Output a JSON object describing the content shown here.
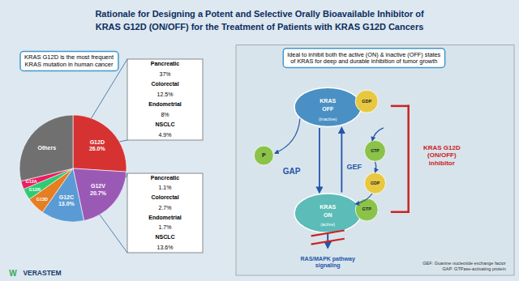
{
  "chart_data": {
    "type": "pie",
    "title": "Rationale for Designing a Potent and Selective Orally Bioavailable Inhibitor of\nKRAS G12D (ON/OFF) for the Treatment of Patients with KRAS G12D Cancers",
    "categories": [
      "G12D",
      "G12V",
      "G12C",
      "G13D",
      "G12R",
      "G12A",
      "Others"
    ],
    "values": [
      26.0,
      20.7,
      13.0,
      5.5,
      3.5,
      2.5,
      28.8
    ],
    "value_labels": [
      "26.0%",
      "20.7%",
      "13.0%",
      null,
      null,
      null,
      null
    ],
    "colors": [
      "#d73232",
      "#9b59b6",
      "#5b9bd5",
      "#e67e22",
      "#2ecc71",
      "#e91e63",
      "#707070"
    ],
    "data_labels": true,
    "annotations": {
      "left_box": "KRAS G12D is the most frequent\nKRAS mutation in human cancer",
      "right_box": "Ideal to inhibit both the active (ON) & inactive (OFF) states\nof KRAS for deep and durable inhibition of tumor growth",
      "top_box": [
        "Pancreatic",
        "37%",
        "Colorectal",
        "12.5%",
        "Endometrial",
        "8%",
        "NSCLC",
        "4.9%"
      ],
      "bottom_box": [
        "Pancreatic",
        "1.1%",
        "Colorectal",
        "2.7%",
        "Endometrial",
        "1.7%",
        "NSCLC",
        "13.6%"
      ],
      "kras_off": [
        "KRAS",
        "OFF",
        "(inactive)"
      ],
      "kras_on": [
        "KRAS",
        "ON",
        "(active)"
      ],
      "gdp_top": "GDP",
      "gtp_bottom": "GTP",
      "phosphate": "P",
      "gtp_middle": "GTP",
      "gdp_middle": "GDP",
      "gap": "GAP",
      "gef": "GEF",
      "inhibitor": "KRAS G12D\n(ON/OFF)\ninhibitor",
      "pathway": "RAS/MAPK pathway\nsignaling",
      "footnote": "GEF: Guanine nucleotide exchange factor\nGAP: GTPase-activating protein",
      "logo_mark": "W",
      "logo_text": "VERASTEM"
    }
  }
}
